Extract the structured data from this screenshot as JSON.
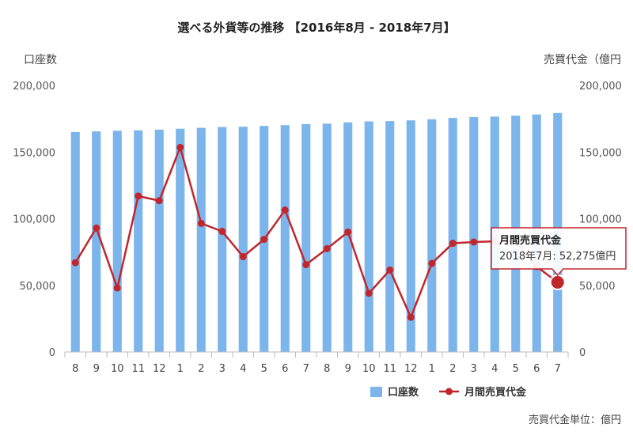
{
  "chart_data": {
    "type": "bar+line",
    "title": "選べる外貨等の推移 【2016年8月 - 2018年7月】",
    "categories": [
      "8",
      "9",
      "10",
      "11",
      "12",
      "1",
      "2",
      "3",
      "4",
      "5",
      "6",
      "7",
      "8",
      "9",
      "10",
      "11",
      "12",
      "1",
      "2",
      "3",
      "4",
      "5",
      "6",
      "7"
    ],
    "series": [
      {
        "name": "口座数",
        "type": "bar",
        "axis": "left",
        "color": "#7cb5ec",
        "values": [
          165000,
          165500,
          166000,
          166300,
          166800,
          167500,
          168200,
          168800,
          169000,
          169600,
          170200,
          171000,
          171300,
          172300,
          173000,
          173200,
          173800,
          174600,
          175600,
          176300,
          176600,
          177300,
          178200,
          179300
        ]
      },
      {
        "name": "月間売買代金",
        "type": "line",
        "axis": "right",
        "color": "#c0272d",
        "values": [
          67000,
          93000,
          48000,
          117000,
          113500,
          153500,
          96500,
          90500,
          71500,
          84500,
          106500,
          65500,
          77500,
          90000,
          44000,
          61500,
          26000,
          66500,
          81500,
          82500,
          83000,
          83000,
          64000,
          52275
        ]
      }
    ],
    "y_left": {
      "label": "口座数",
      "ylim": [
        0,
        200000
      ],
      "ticks": [
        "0",
        "50,000",
        "100,000",
        "150,000",
        "200,000"
      ]
    },
    "y_right": {
      "label": "売買代金（億円",
      "ylim": [
        0,
        200000
      ],
      "ticks": [
        "0",
        "50,000",
        "100,000",
        "150,000",
        "200,000"
      ]
    },
    "legend": {
      "position": "bottom-center",
      "items": [
        "口座数",
        "月間売買代金"
      ]
    },
    "tooltip": {
      "title": "月間売買代金",
      "body": "2018年7月: 52,275億円"
    },
    "footnote": "売買代金単位：億円",
    "grid": false
  }
}
